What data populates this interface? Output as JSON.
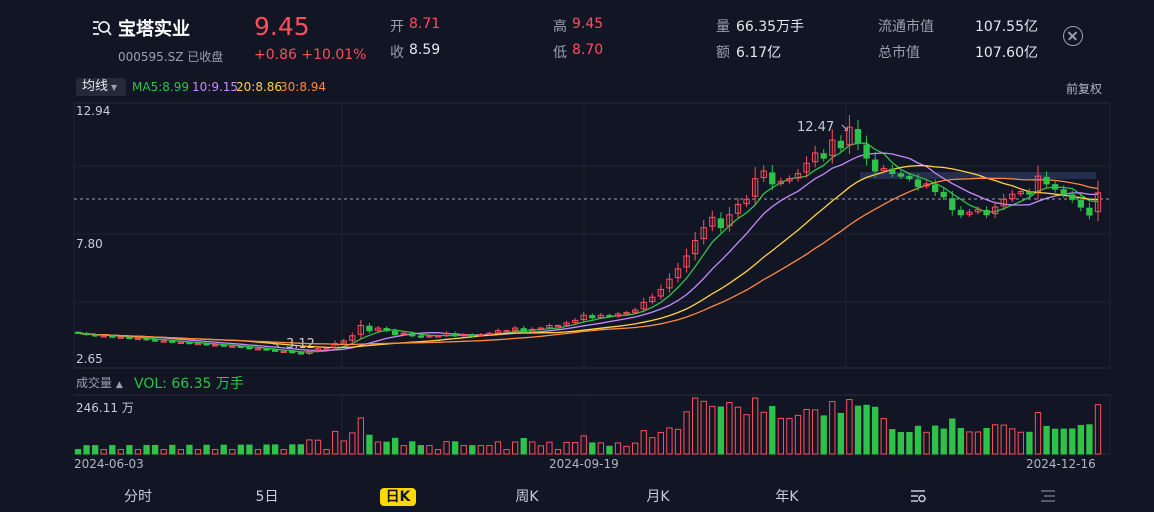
{
  "header": {
    "name": "宝塔实业",
    "code_status": "000595.SZ 已收盘",
    "price": "9.45",
    "change": "+0.86 +10.01%",
    "quotes": {
      "open_label": "开",
      "open": "8.71",
      "close_label": "收",
      "close": "8.59",
      "high_label": "高",
      "high": "9.45",
      "low_label": "低",
      "low": "8.70",
      "volume_label": "量",
      "volume": "66.35万手",
      "amount_label": "额",
      "amount": "6.17亿",
      "float_cap_label": "流通市值",
      "float_cap": "107.55亿",
      "total_cap_label": "总市值",
      "total_cap": "107.60亿"
    }
  },
  "toolbar": {
    "indicator": "均线",
    "ma5": "MA5:8.99",
    "ma10": "10:9.15",
    "ma20": "20:8.86",
    "ma30": "30:8.94",
    "adjust": "前复权"
  },
  "chart_labels": {
    "y_top": "12.94",
    "y_mid": "7.80",
    "y_bottom": "2.65",
    "peak": "12.47",
    "trough": "3.12",
    "vol_indicator": "成交量",
    "vol_value": "VOL: 66.35 万手",
    "vol_max": "246.11 万"
  },
  "dates": [
    "2024-06-03",
    "2024-09-19",
    "2024-12-16"
  ],
  "tabs": [
    "分时",
    "5日",
    "日K",
    "周K",
    "月K",
    "年K"
  ],
  "colors": {
    "up": "#ff4d5c",
    "down": "#2fc24a",
    "ma5": "#2fc24a",
    "ma10": "#c78bff",
    "ma20": "#ffd23f",
    "ma30": "#ff8a3d",
    "active_tab": "#ffd900"
  },
  "chart_data": {
    "type": "candlestick",
    "y_range": [
      2.65,
      12.94
    ],
    "x_start": "2024-06-03",
    "x_end": "2024-12-16",
    "closes": [
      4.0,
      3.95,
      3.9,
      3.9,
      3.85,
      3.85,
      3.8,
      3.8,
      3.75,
      3.7,
      3.7,
      3.65,
      3.65,
      3.6,
      3.6,
      3.55,
      3.55,
      3.5,
      3.5,
      3.45,
      3.4,
      3.4,
      3.35,
      3.3,
      3.3,
      3.25,
      3.2,
      3.3,
      3.4,
      3.4,
      3.6,
      3.7,
      3.9,
      4.3,
      4.1,
      4.2,
      4.1,
      3.95,
      4.0,
      3.9,
      3.85,
      3.9,
      3.9,
      4.0,
      3.9,
      3.95,
      3.9,
      3.95,
      4.0,
      4.1,
      4.1,
      4.2,
      4.05,
      4.15,
      4.2,
      4.3,
      4.3,
      4.4,
      4.5,
      4.7,
      4.6,
      4.7,
      4.65,
      4.75,
      4.8,
      4.9,
      5.2,
      5.4,
      5.7,
      6.1,
      6.5,
      7.0,
      7.6,
      8.1,
      8.5,
      8.1,
      8.6,
      9.0,
      9.2,
      10.0,
      10.3,
      9.8,
      9.9,
      10.0,
      10.2,
      10.6,
      11.0,
      10.8,
      11.5,
      11.2,
      12.0,
      11.4,
      10.8,
      10.3,
      10.4,
      10.2,
      10.1,
      10.0,
      9.7,
      9.8,
      9.5,
      9.3,
      8.8,
      8.6,
      8.7,
      8.8,
      8.6,
      8.9,
      9.2,
      9.4,
      9.5,
      9.4,
      10.1,
      9.8,
      9.6,
      9.4,
      9.2,
      8.9,
      8.59,
      9.45
    ],
    "series": [
      {
        "name": "MA5",
        "value": 8.99
      },
      {
        "name": "10",
        "value": 9.15
      },
      {
        "name": "20",
        "value": 8.86
      },
      {
        "name": "30",
        "value": 8.94
      }
    ],
    "annotations": [
      {
        "label": "12.47",
        "value": 12.47
      },
      {
        "label": "3.12",
        "value": 3.12
      }
    ],
    "volume_max": "246.11 万",
    "volume_last": "66.35 万手"
  }
}
